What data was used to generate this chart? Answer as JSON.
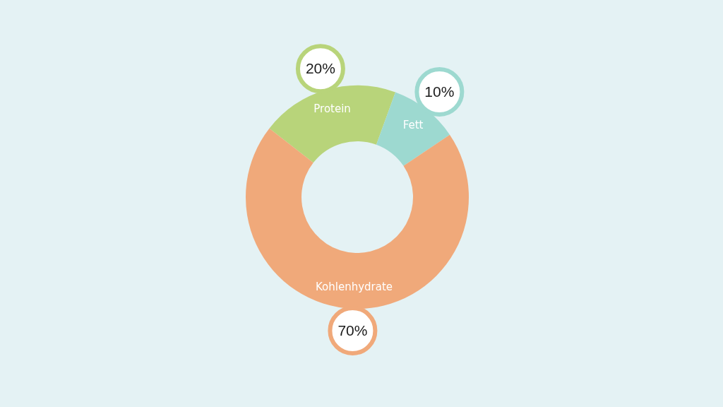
{
  "chart_data": {
    "type": "donut",
    "categories": [
      "Protein",
      "Fett",
      "Kohlenhydrate"
    ],
    "values": [
      20,
      10,
      70
    ],
    "colors": [
      "#b8d47a",
      "#9dd9d0",
      "#f0a97a"
    ],
    "value_labels": [
      "20%",
      "10%",
      "70%"
    ]
  }
}
